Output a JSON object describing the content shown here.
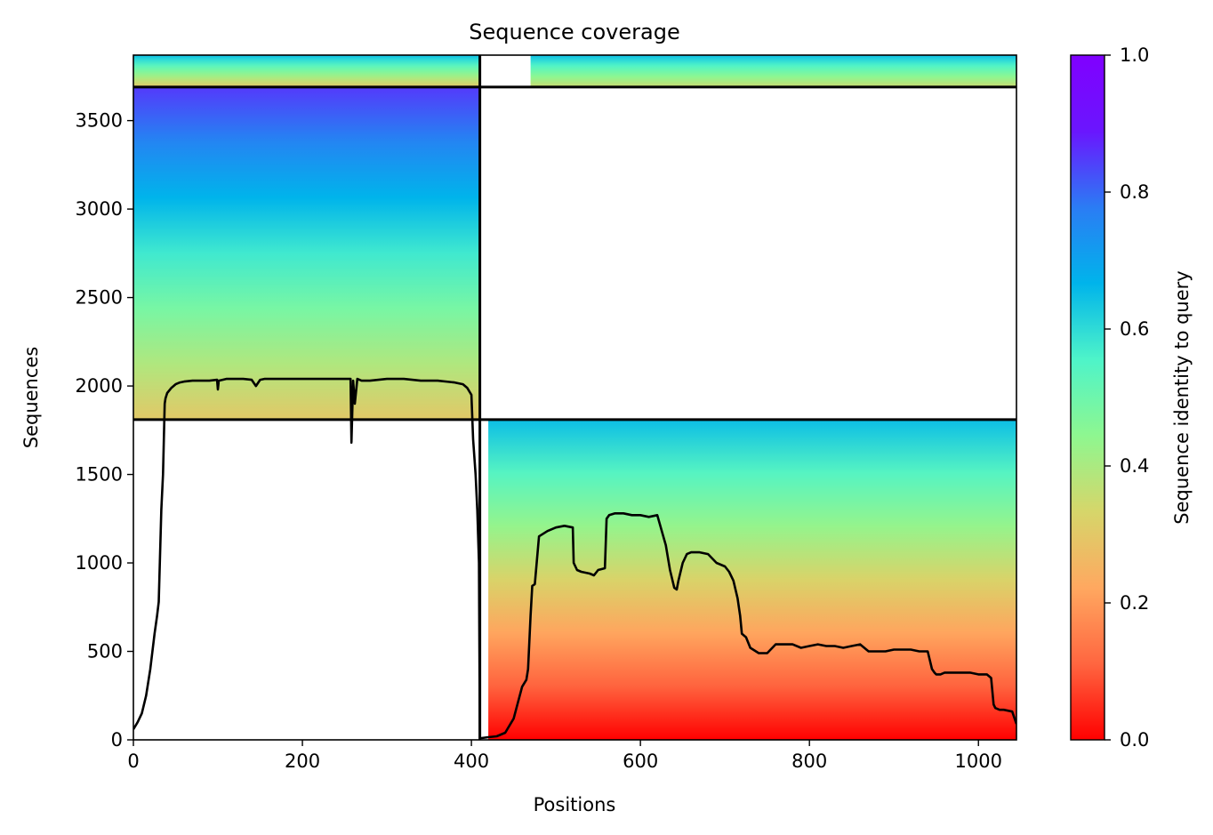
{
  "chart_data": {
    "type": "heatmap",
    "title": "Sequence coverage",
    "xlabel": "Positions",
    "ylabel": "Sequences",
    "xlim": [
      0,
      1045
    ],
    "ylim": [
      0,
      3870
    ],
    "xticks": [
      0,
      200,
      400,
      600,
      800,
      1000
    ],
    "yticks": [
      0,
      500,
      1000,
      1500,
      2000,
      2500,
      3000,
      3500
    ],
    "colorbar": {
      "label": "Sequence identity to query",
      "range": [
        0,
        1
      ],
      "ticks": [
        0.0,
        0.2,
        0.4,
        0.6,
        0.8,
        1.0
      ],
      "tick_labels": [
        "0.0",
        "0.2",
        "0.4",
        "0.6",
        "0.8",
        "1.0"
      ],
      "colormap": [
        "#ff0000",
        "#ff6640",
        "#ffa860",
        "#d6d66a",
        "#8ef790",
        "#4ef4c9",
        "#00b4eb",
        "#2b7cf4",
        "#6a16fe",
        "#8000ff"
      ]
    },
    "segment_boundaries": {
      "horizontal": [
        1810,
        3690
      ],
      "vertical": [
        410
      ]
    },
    "coverage_blocks": [
      {
        "name": "top-left",
        "x": [
          0,
          410
        ],
        "y": [
          3690,
          3870
        ],
        "identity_bottom": 0.3,
        "identity_top": 0.65
      },
      {
        "name": "top-right",
        "x": [
          470,
          1045
        ],
        "y": [
          3690,
          3870
        ],
        "identity_bottom": 0.35,
        "identity_top": 0.65
      },
      {
        "name": "middle-left",
        "x": [
          0,
          410
        ],
        "y": [
          1810,
          3690
        ],
        "identity_bottom": 0.3,
        "identity_top": 0.85
      },
      {
        "name": "bottom-right",
        "x": [
          420,
          1045
        ],
        "y": [
          0,
          1810
        ],
        "identity_bottom": 0.0,
        "identity_top": 0.65
      }
    ],
    "series": [
      {
        "color": "#000000",
        "x": [
          0,
          5,
          10,
          15,
          20,
          25,
          28,
          30,
          33,
          35,
          37,
          38,
          40,
          45,
          50,
          55,
          60,
          70,
          80,
          90,
          99,
          100,
          101,
          110,
          120,
          130,
          140,
          145,
          150,
          155,
          160,
          180,
          200,
          220,
          240,
          250,
          255,
          257,
          258,
          260,
          262,
          265,
          270,
          280,
          300,
          320,
          340,
          360,
          380,
          390,
          395,
          400,
          402,
          405,
          407,
          409,
          410,
          412,
          420,
          430,
          440,
          450,
          460,
          465,
          467,
          470,
          472,
          475,
          480,
          490,
          500,
          510,
          520,
          521,
          523,
          525,
          530,
          540,
          545,
          550,
          558,
          560,
          563,
          570,
          580,
          590,
          600,
          610,
          620,
          630,
          635,
          640,
          643,
          645,
          650,
          655,
          660,
          665,
          670,
          680,
          690,
          700,
          705,
          710,
          715,
          718,
          720,
          725,
          730,
          740,
          750,
          760,
          770,
          780,
          790,
          800,
          810,
          820,
          830,
          840,
          850,
          860,
          870,
          880,
          890,
          900,
          910,
          920,
          930,
          940,
          945,
          948,
          950,
          955,
          960,
          970,
          980,
          990,
          1000,
          1010,
          1015,
          1018,
          1020,
          1025,
          1030,
          1040,
          1045
        ],
        "y": [
          60,
          100,
          150,
          250,
          400,
          600,
          700,
          780,
          1300,
          1500,
          1900,
          1930,
          1960,
          1990,
          2010,
          2020,
          2025,
          2030,
          2030,
          2030,
          2035,
          1980,
          2030,
          2040,
          2040,
          2040,
          2035,
          2000,
          2035,
          2040,
          2040,
          2040,
          2040,
          2040,
          2040,
          2040,
          2040,
          2040,
          1680,
          2030,
          1900,
          2040,
          2030,
          2030,
          2040,
          2040,
          2030,
          2030,
          2020,
          2010,
          1990,
          1950,
          1700,
          1500,
          1300,
          1000,
          10,
          10,
          15,
          20,
          40,
          120,
          300,
          340,
          400,
          700,
          870,
          880,
          1150,
          1180,
          1200,
          1210,
          1200,
          1000,
          980,
          960,
          950,
          940,
          930,
          960,
          970,
          1250,
          1270,
          1280,
          1280,
          1270,
          1270,
          1260,
          1270,
          1100,
          960,
          860,
          850,
          900,
          1000,
          1050,
          1060,
          1060,
          1060,
          1050,
          1000,
          980,
          950,
          900,
          800,
          700,
          600,
          580,
          520,
          490,
          490,
          540,
          540,
          540,
          520,
          530,
          540,
          530,
          530,
          520,
          530,
          540,
          500,
          500,
          500,
          510,
          510,
          510,
          500,
          500,
          400,
          380,
          370,
          370,
          380,
          380,
          380,
          380,
          370,
          370,
          350,
          200,
          180,
          170,
          170,
          160,
          90
        ]
      }
    ]
  }
}
